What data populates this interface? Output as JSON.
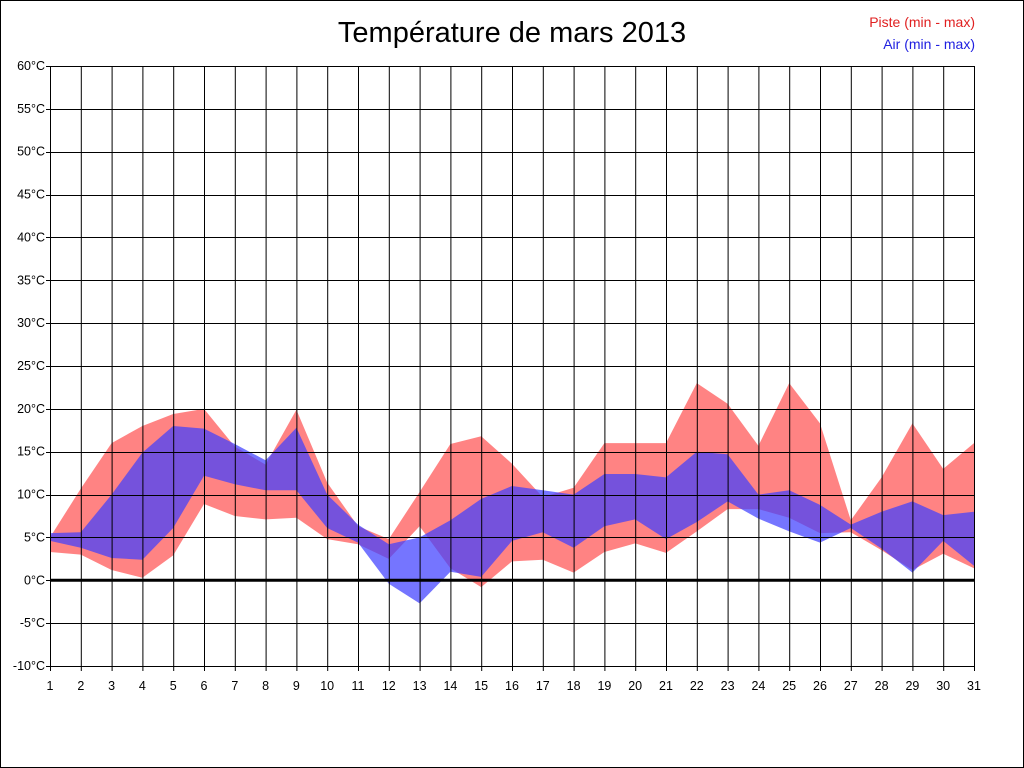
{
  "chart_data": {
    "type": "area",
    "title": "Température de mars 2013",
    "xlabel": "",
    "ylabel": "",
    "x": [
      1,
      2,
      3,
      4,
      5,
      6,
      7,
      8,
      9,
      10,
      11,
      12,
      13,
      14,
      15,
      16,
      17,
      18,
      19,
      20,
      21,
      22,
      23,
      24,
      25,
      26,
      27,
      28,
      29,
      30,
      31
    ],
    "ylim": [
      -10,
      60
    ],
    "y_ticks": [
      -10,
      -5,
      0,
      5,
      10,
      15,
      20,
      25,
      30,
      35,
      40,
      45,
      50,
      55,
      60
    ],
    "y_tick_suffix": "°C",
    "grid": true,
    "zero_line": true,
    "series": [
      {
        "name": "Piste (min - max)",
        "color": "#ff4040",
        "label_color": "#e02020",
        "min": [
          3.3,
          3.0,
          1.2,
          0.3,
          2.9,
          8.9,
          7.5,
          7.1,
          7.3,
          4.8,
          4.2,
          2.5,
          6.3,
          1.4,
          -0.8,
          2.2,
          2.4,
          0.9,
          3.3,
          4.3,
          3.2,
          5.7,
          8.3,
          8.3,
          7.3,
          5.5,
          5.6,
          3.5,
          1.2,
          3.1,
          1.4
        ],
        "max": [
          5.0,
          10.7,
          16.0,
          18.0,
          19.4,
          20.0,
          15.6,
          13.5,
          19.9,
          11.4,
          6.3,
          4.8,
          10.3,
          15.9,
          16.8,
          13.6,
          9.7,
          10.8,
          16.0,
          16.0,
          16.0,
          23.0,
          20.6,
          15.7,
          23.0,
          18.3,
          7.0,
          12.0,
          18.3,
          13.0,
          16.0
        ]
      },
      {
        "name": "Air (min - max)",
        "color": "#4040ff",
        "label_color": "#2020e0",
        "min": [
          4.6,
          3.8,
          2.6,
          2.4,
          6.1,
          12.2,
          11.2,
          10.5,
          10.5,
          6.1,
          4.4,
          -0.4,
          -2.7,
          1.0,
          0.4,
          4.6,
          5.6,
          3.8,
          6.3,
          7.1,
          4.8,
          6.8,
          9.2,
          7.2,
          5.7,
          4.4,
          6.1,
          3.7,
          0.9,
          4.6,
          1.7
        ],
        "max": [
          5.5,
          5.6,
          10.0,
          14.9,
          18.0,
          17.7,
          15.9,
          14.0,
          17.8,
          10.0,
          6.5,
          4.2,
          5.0,
          7.0,
          9.5,
          11.0,
          10.5,
          10.0,
          12.4,
          12.4,
          12.0,
          15.0,
          14.7,
          10.0,
          10.5,
          8.8,
          6.5,
          8.0,
          9.2,
          7.6,
          8.0
        ]
      }
    ]
  }
}
